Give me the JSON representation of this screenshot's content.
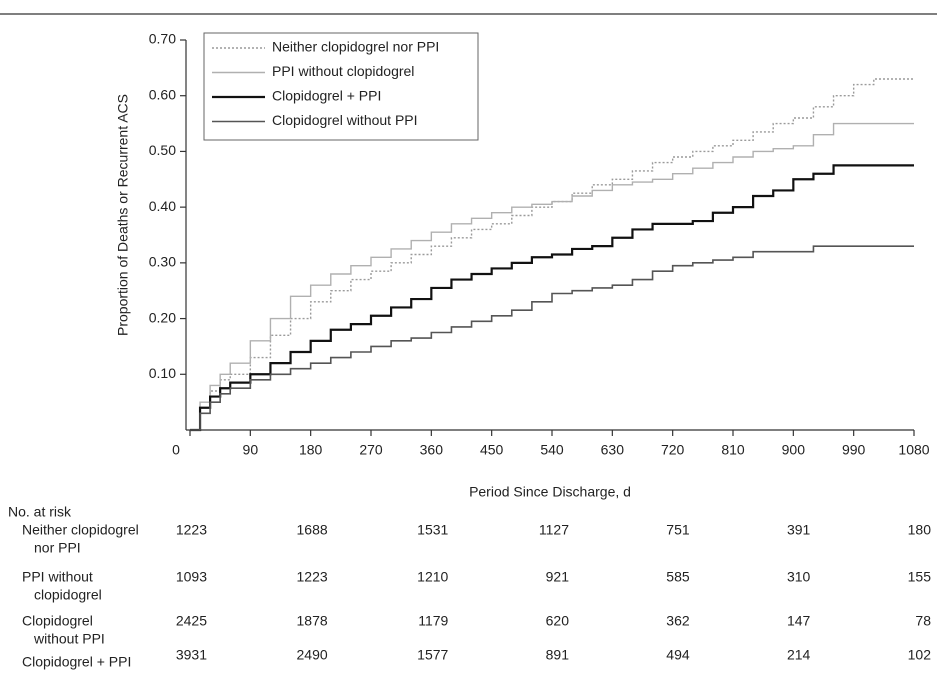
{
  "chart_data": {
    "type": "line",
    "step": true,
    "xlabel": "Period Since Discharge, d",
    "ylabel": "Proportion of Deaths or Recurrent ACS",
    "xlim": [
      0,
      1080
    ],
    "xticks": [
      0,
      90,
      180,
      270,
      360,
      450,
      540,
      630,
      720,
      810,
      900,
      990,
      1080
    ],
    "ylim": [
      0,
      0.7
    ],
    "yticks": [
      {
        "value": 0.1,
        "label": "0.10"
      },
      {
        "value": 0.2,
        "label": "0.20"
      },
      {
        "value": 0.3,
        "label": "0.30"
      },
      {
        "value": 0.4,
        "label": "0.40"
      },
      {
        "value": 0.5,
        "label": "0.50"
      },
      {
        "value": 0.6,
        "label": "0.60"
      },
      {
        "value": 0.7,
        "label": "0.70"
      }
    ],
    "x": [
      0,
      15,
      30,
      45,
      60,
      90,
      120,
      150,
      180,
      210,
      240,
      270,
      300,
      330,
      360,
      390,
      420,
      450,
      480,
      510,
      540,
      570,
      600,
      630,
      660,
      690,
      720,
      750,
      780,
      810,
      840,
      870,
      900,
      930,
      960,
      990,
      1020,
      1050,
      1080
    ],
    "series": [
      {
        "name": "Neither clopidogrel nor PPI",
        "color": "#9a9a9a",
        "style": "dotted",
        "width": 1.4,
        "values": [
          0,
          0.04,
          0.07,
          0.09,
          0.1,
          0.13,
          0.17,
          0.2,
          0.23,
          0.25,
          0.27,
          0.285,
          0.3,
          0.315,
          0.33,
          0.345,
          0.36,
          0.37,
          0.385,
          0.4,
          0.41,
          0.425,
          0.44,
          0.45,
          0.465,
          0.48,
          0.49,
          0.5,
          0.51,
          0.52,
          0.535,
          0.55,
          0.56,
          0.58,
          0.6,
          0.62,
          0.63,
          0.63,
          0.63
        ]
      },
      {
        "name": "PPI without clopidogrel",
        "color": "#b0b0b0",
        "style": "solid",
        "width": 1.4,
        "values": [
          0,
          0.05,
          0.08,
          0.1,
          0.12,
          0.16,
          0.2,
          0.24,
          0.26,
          0.28,
          0.295,
          0.31,
          0.325,
          0.34,
          0.355,
          0.37,
          0.38,
          0.39,
          0.4,
          0.405,
          0.41,
          0.42,
          0.43,
          0.44,
          0.445,
          0.45,
          0.46,
          0.47,
          0.48,
          0.49,
          0.5,
          0.505,
          0.51,
          0.53,
          0.55,
          0.55,
          0.55,
          0.55,
          0.55
        ]
      },
      {
        "name": "Clopidogrel + PPI",
        "color": "#111111",
        "style": "solid",
        "width": 2.2,
        "values": [
          0,
          0.04,
          0.06,
          0.075,
          0.085,
          0.1,
          0.12,
          0.14,
          0.16,
          0.18,
          0.19,
          0.205,
          0.22,
          0.235,
          0.255,
          0.27,
          0.28,
          0.29,
          0.3,
          0.31,
          0.315,
          0.325,
          0.33,
          0.345,
          0.36,
          0.37,
          0.37,
          0.375,
          0.39,
          0.4,
          0.42,
          0.43,
          0.45,
          0.46,
          0.475,
          0.475,
          0.475,
          0.475,
          0.475
        ]
      },
      {
        "name": "Clopidogrel without PPI",
        "color": "#555555",
        "style": "solid",
        "width": 1.6,
        "values": [
          0,
          0.03,
          0.05,
          0.065,
          0.075,
          0.09,
          0.1,
          0.11,
          0.12,
          0.13,
          0.14,
          0.15,
          0.16,
          0.165,
          0.175,
          0.185,
          0.195,
          0.205,
          0.215,
          0.23,
          0.245,
          0.25,
          0.255,
          0.26,
          0.27,
          0.285,
          0.295,
          0.3,
          0.305,
          0.31,
          0.32,
          0.32,
          0.32,
          0.33,
          0.33,
          0.33,
          0.33,
          0.33,
          0.33
        ]
      }
    ],
    "risk_table": {
      "title": "No. at risk",
      "rows": [
        {
          "label": [
            "Neither clopidogrel",
            "nor PPI"
          ],
          "counts": [
            1223,
            1688,
            1531,
            1127,
            751,
            391,
            180
          ]
        },
        {
          "label": [
            "PPI without",
            "clopidogrel"
          ],
          "counts": [
            1093,
            1223,
            1210,
            921,
            585,
            310,
            155
          ]
        },
        {
          "label": [
            "Clopidogrel",
            "without PPI"
          ],
          "counts": [
            2425,
            1878,
            1179,
            620,
            362,
            147,
            78
          ]
        },
        {
          "label": [
            "Clopidogrel + PPI"
          ],
          "counts": [
            3931,
            2490,
            1577,
            891,
            494,
            214,
            102
          ]
        }
      ]
    }
  }
}
